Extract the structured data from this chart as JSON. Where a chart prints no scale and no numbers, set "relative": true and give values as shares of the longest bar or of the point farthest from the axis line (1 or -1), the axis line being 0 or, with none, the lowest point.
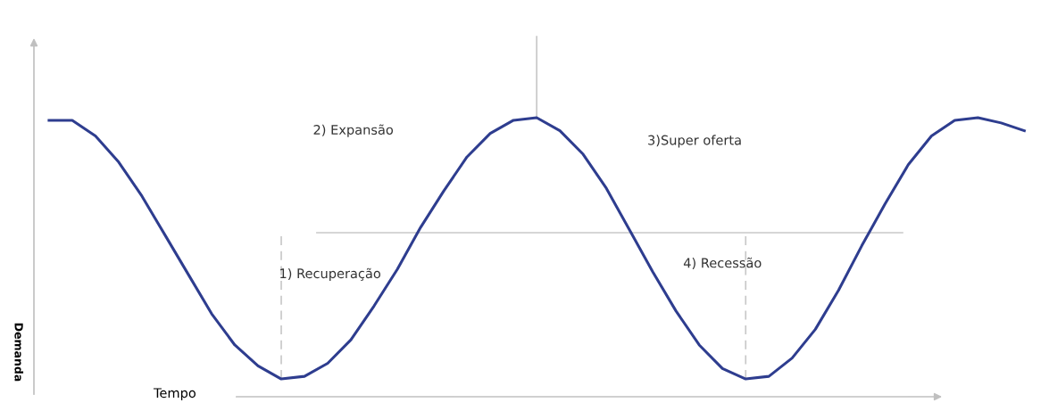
{
  "chart_data": {
    "type": "line",
    "relative": true,
    "xlabel": "Tempo",
    "ylabel": "Demanda",
    "categories": [
      null,
      null,
      null,
      null,
      null,
      null,
      null,
      null,
      null,
      null,
      null,
      null,
      null,
      null,
      null,
      null,
      null,
      null,
      null,
      null,
      null,
      null,
      null,
      null,
      null,
      null,
      null,
      null,
      null,
      null,
      null,
      null,
      null,
      null,
      null,
      null,
      null,
      null,
      null,
      null,
      null,
      null,
      null
    ],
    "series": [
      {
        "color": "#2e3d8f",
        "values": [
          0.99,
          0.99,
          0.93,
          0.83,
          0.7,
          0.55,
          0.4,
          0.25,
          0.13,
          0.05,
          0.0,
          0.01,
          0.06,
          0.15,
          0.28,
          0.42,
          0.58,
          0.72,
          0.85,
          0.94,
          0.99,
          1.0,
          0.95,
          0.86,
          0.73,
          0.57,
          0.41,
          0.26,
          0.13,
          0.04,
          0.0,
          0.01,
          0.08,
          0.19,
          0.34,
          0.51,
          0.67,
          0.82,
          0.93,
          0.99,
          1.0,
          0.98,
          0.95
        ]
      }
    ],
    "ref_lines": [
      {
        "axis": "y",
        "value": 0.56,
        "color": "#c8c8c8",
        "line_style": "solid"
      }
    ],
    "annotations": [
      "1) Recuperação",
      "2) Expansão",
      "3)Super oferta",
      "4) Recessão"
    ],
    "legend": false,
    "marker": "none",
    "line_style": "solid"
  }
}
